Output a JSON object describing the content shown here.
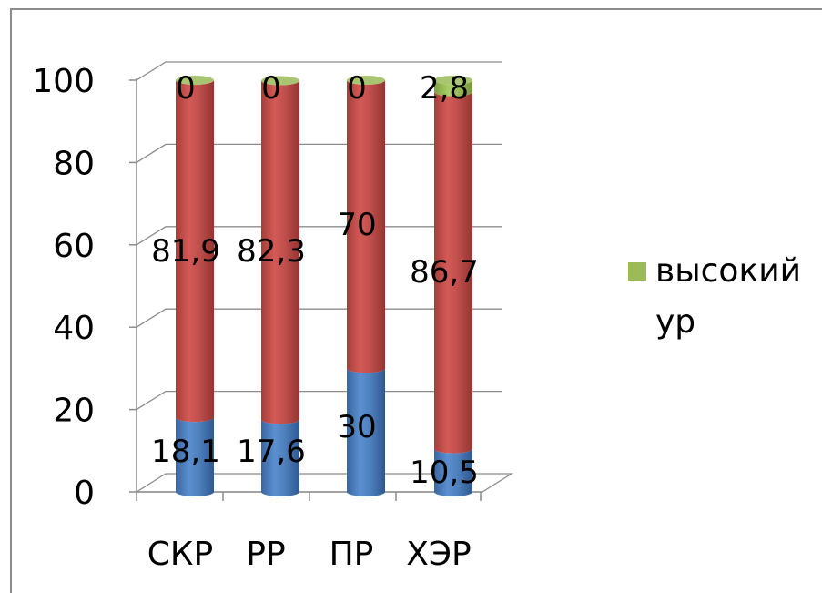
{
  "chart_data": {
    "type": "bar",
    "stacked": true,
    "style": "3d-cylinder",
    "categories": [
      "СКР",
      "РР",
      "ПР",
      "ХЭР"
    ],
    "ylim": [
      0,
      100
    ],
    "yticks": [
      "0",
      "20",
      "40",
      "60",
      "80",
      "100"
    ],
    "grid": true,
    "legend_position": "right",
    "series": [
      {
        "key": "low",
        "values": [
          18.1,
          17.6,
          30,
          10.5
        ],
        "labels": [
          "18,1",
          "17,6",
          "30",
          "10,5"
        ],
        "color": "#4F81BD"
      },
      {
        "key": "mid",
        "values": [
          81.9,
          82.3,
          70,
          86.7
        ],
        "labels": [
          "81,9",
          "82,3",
          "70",
          "86,7"
        ],
        "color": "#C0504D"
      },
      {
        "name": "высокий ур",
        "key": "high",
        "values": [
          0,
          0,
          0,
          2.8
        ],
        "labels": [
          "0",
          "0",
          "0",
          "2,8"
        ],
        "color": "#9BBB59"
      }
    ]
  },
  "legend": {
    "items": [
      {
        "label_line1": "высокий",
        "label_line2": "ур",
        "color": "#9BBB59"
      }
    ]
  }
}
